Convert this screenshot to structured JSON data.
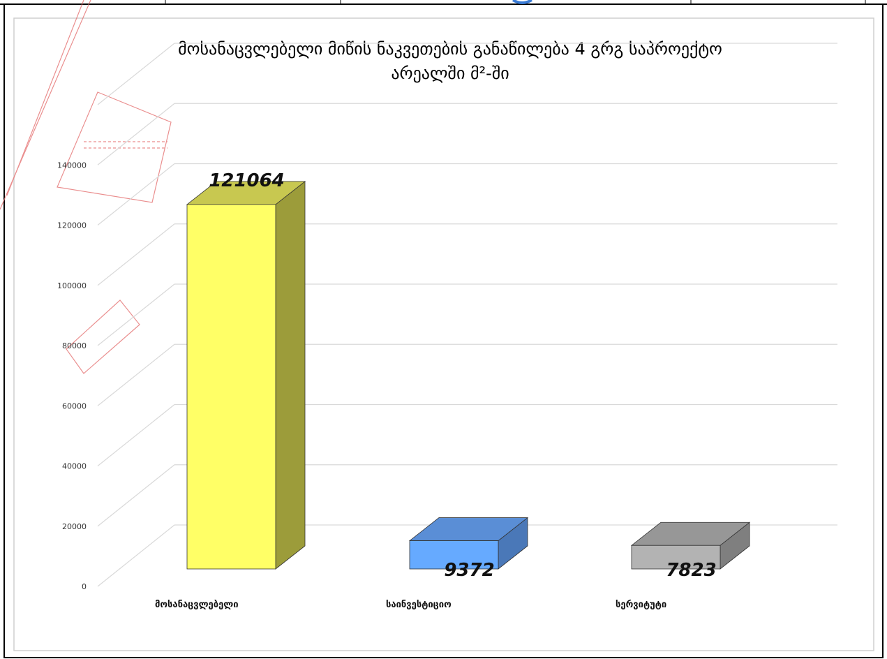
{
  "chart_data": {
    "type": "bar",
    "title_line1": "მოსანაცვლებელი მიწის ნაკვეთების განაწილება 4 გრგ საპროექტო",
    "title_line2": "არეალში მ²-ში",
    "categories": [
      "მოსანაცვლებელი",
      "საინვესტიციო",
      "სერვიტუტი"
    ],
    "values": [
      121064,
      9372,
      7823
    ],
    "value_labels": [
      "121064",
      "9372",
      "7823"
    ],
    "y_ticks": [
      "0",
      "20000",
      "40000",
      "60000",
      "80000",
      "100000",
      "120000",
      "140000"
    ],
    "ylim": [
      0,
      160000
    ],
    "grid": true,
    "legend": "none",
    "style": "3d-column",
    "colors": {
      "bars": [
        "#ffff66",
        "#66aaff",
        "#b3b3b3"
      ],
      "bar_sides": [
        "#9c9c3a",
        "#4a78b8",
        "#7f7f7f"
      ],
      "bar_tops": [
        "#c8c850",
        "#5a8ed6",
        "#979797"
      ],
      "gridline": "#d9d9d9",
      "frame": "#000000",
      "sketch": "#e57373"
    }
  }
}
